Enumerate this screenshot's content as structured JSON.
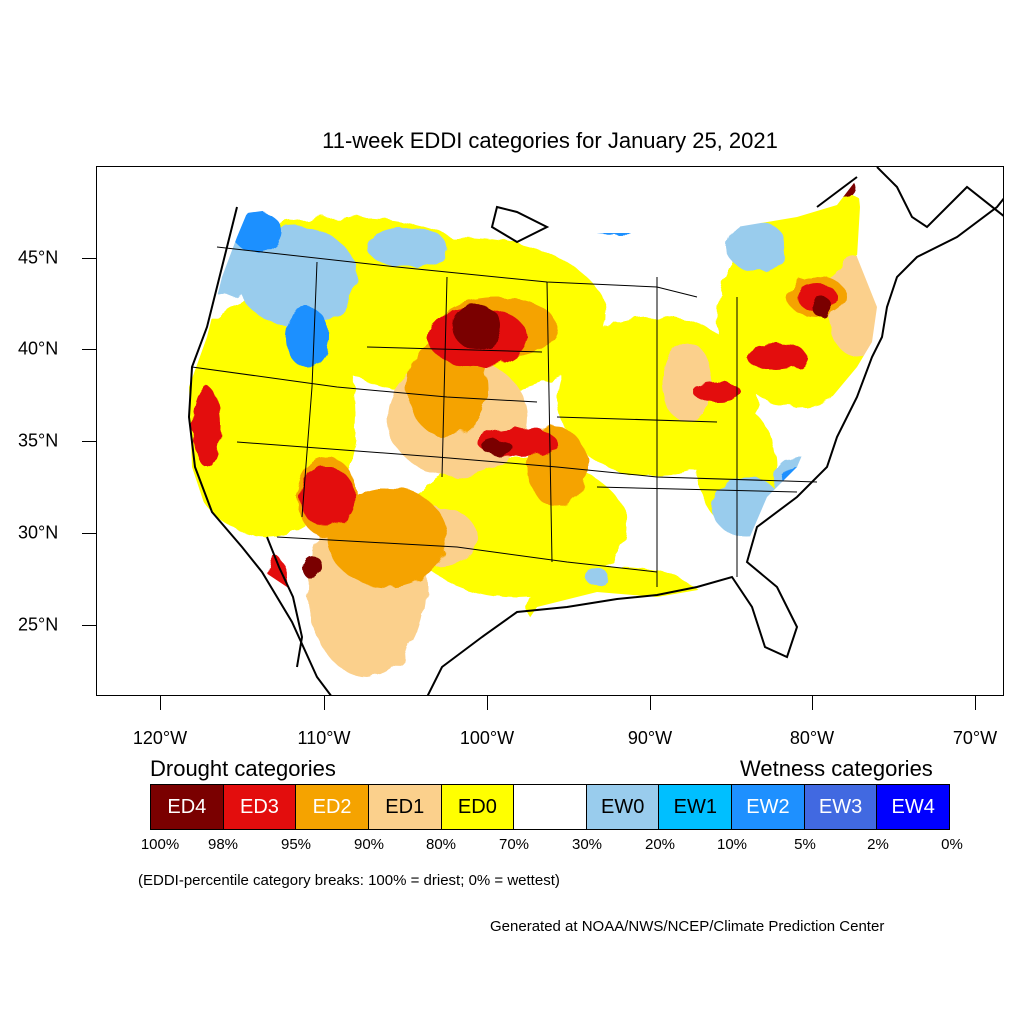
{
  "title": "11-week EDDI categories for January 25, 2021",
  "map": {
    "lat_labels": [
      "45°N",
      "40°N",
      "35°N",
      "30°N",
      "25°N"
    ],
    "lon_labels": [
      "120°W",
      "110°W",
      "100°W",
      "90°W",
      "80°W",
      "70°W"
    ],
    "colors": {
      "ED4": "#7a0000",
      "ED3": "#e30d0d",
      "ED2": "#f5a300",
      "ED1": "#fbd08c",
      "ED0": "#ffff00",
      "neutral": "#ffffff",
      "EW0": "#99cced",
      "EW1": "#00bfff",
      "EW2": "#1e90ff",
      "EW3": "#4169e1",
      "EW4": "#0000ff"
    }
  },
  "legend": {
    "drought_heading": "Drought categories",
    "wetness_heading": "Wetness categories",
    "categories": [
      {
        "label": "ED4",
        "color": "#7a0000",
        "text_color": "#ffffff"
      },
      {
        "label": "ED3",
        "color": "#e30d0d",
        "text_color": "#ffffff"
      },
      {
        "label": "ED2",
        "color": "#f5a300",
        "text_color": "#ffffff"
      },
      {
        "label": "ED1",
        "color": "#fbd08c",
        "text_color": "#000000"
      },
      {
        "label": "ED0",
        "color": "#ffff00",
        "text_color": "#000000"
      },
      {
        "label": "",
        "color": "#ffffff",
        "text_color": "#000000"
      },
      {
        "label": "EW0",
        "color": "#99cced",
        "text_color": "#000000"
      },
      {
        "label": "EW1",
        "color": "#00bfff",
        "text_color": "#000000"
      },
      {
        "label": "EW2",
        "color": "#1e90ff",
        "text_color": "#ffffff"
      },
      {
        "label": "EW3",
        "color": "#4169e1",
        "text_color": "#ffffff"
      },
      {
        "label": "EW4",
        "color": "#0000ff",
        "text_color": "#ffffff"
      }
    ],
    "breaks": [
      "100%",
      "98%",
      "95%",
      "90%",
      "80%",
      "70%",
      "30%",
      "20%",
      "10%",
      "5%",
      "2%",
      "0%"
    ]
  },
  "note": "(EDDI-percentile category breaks: 100% = driest; 0% = wettest)",
  "credit": "Generated at NOAA/NWS/NCEP/Climate Prediction Center"
}
